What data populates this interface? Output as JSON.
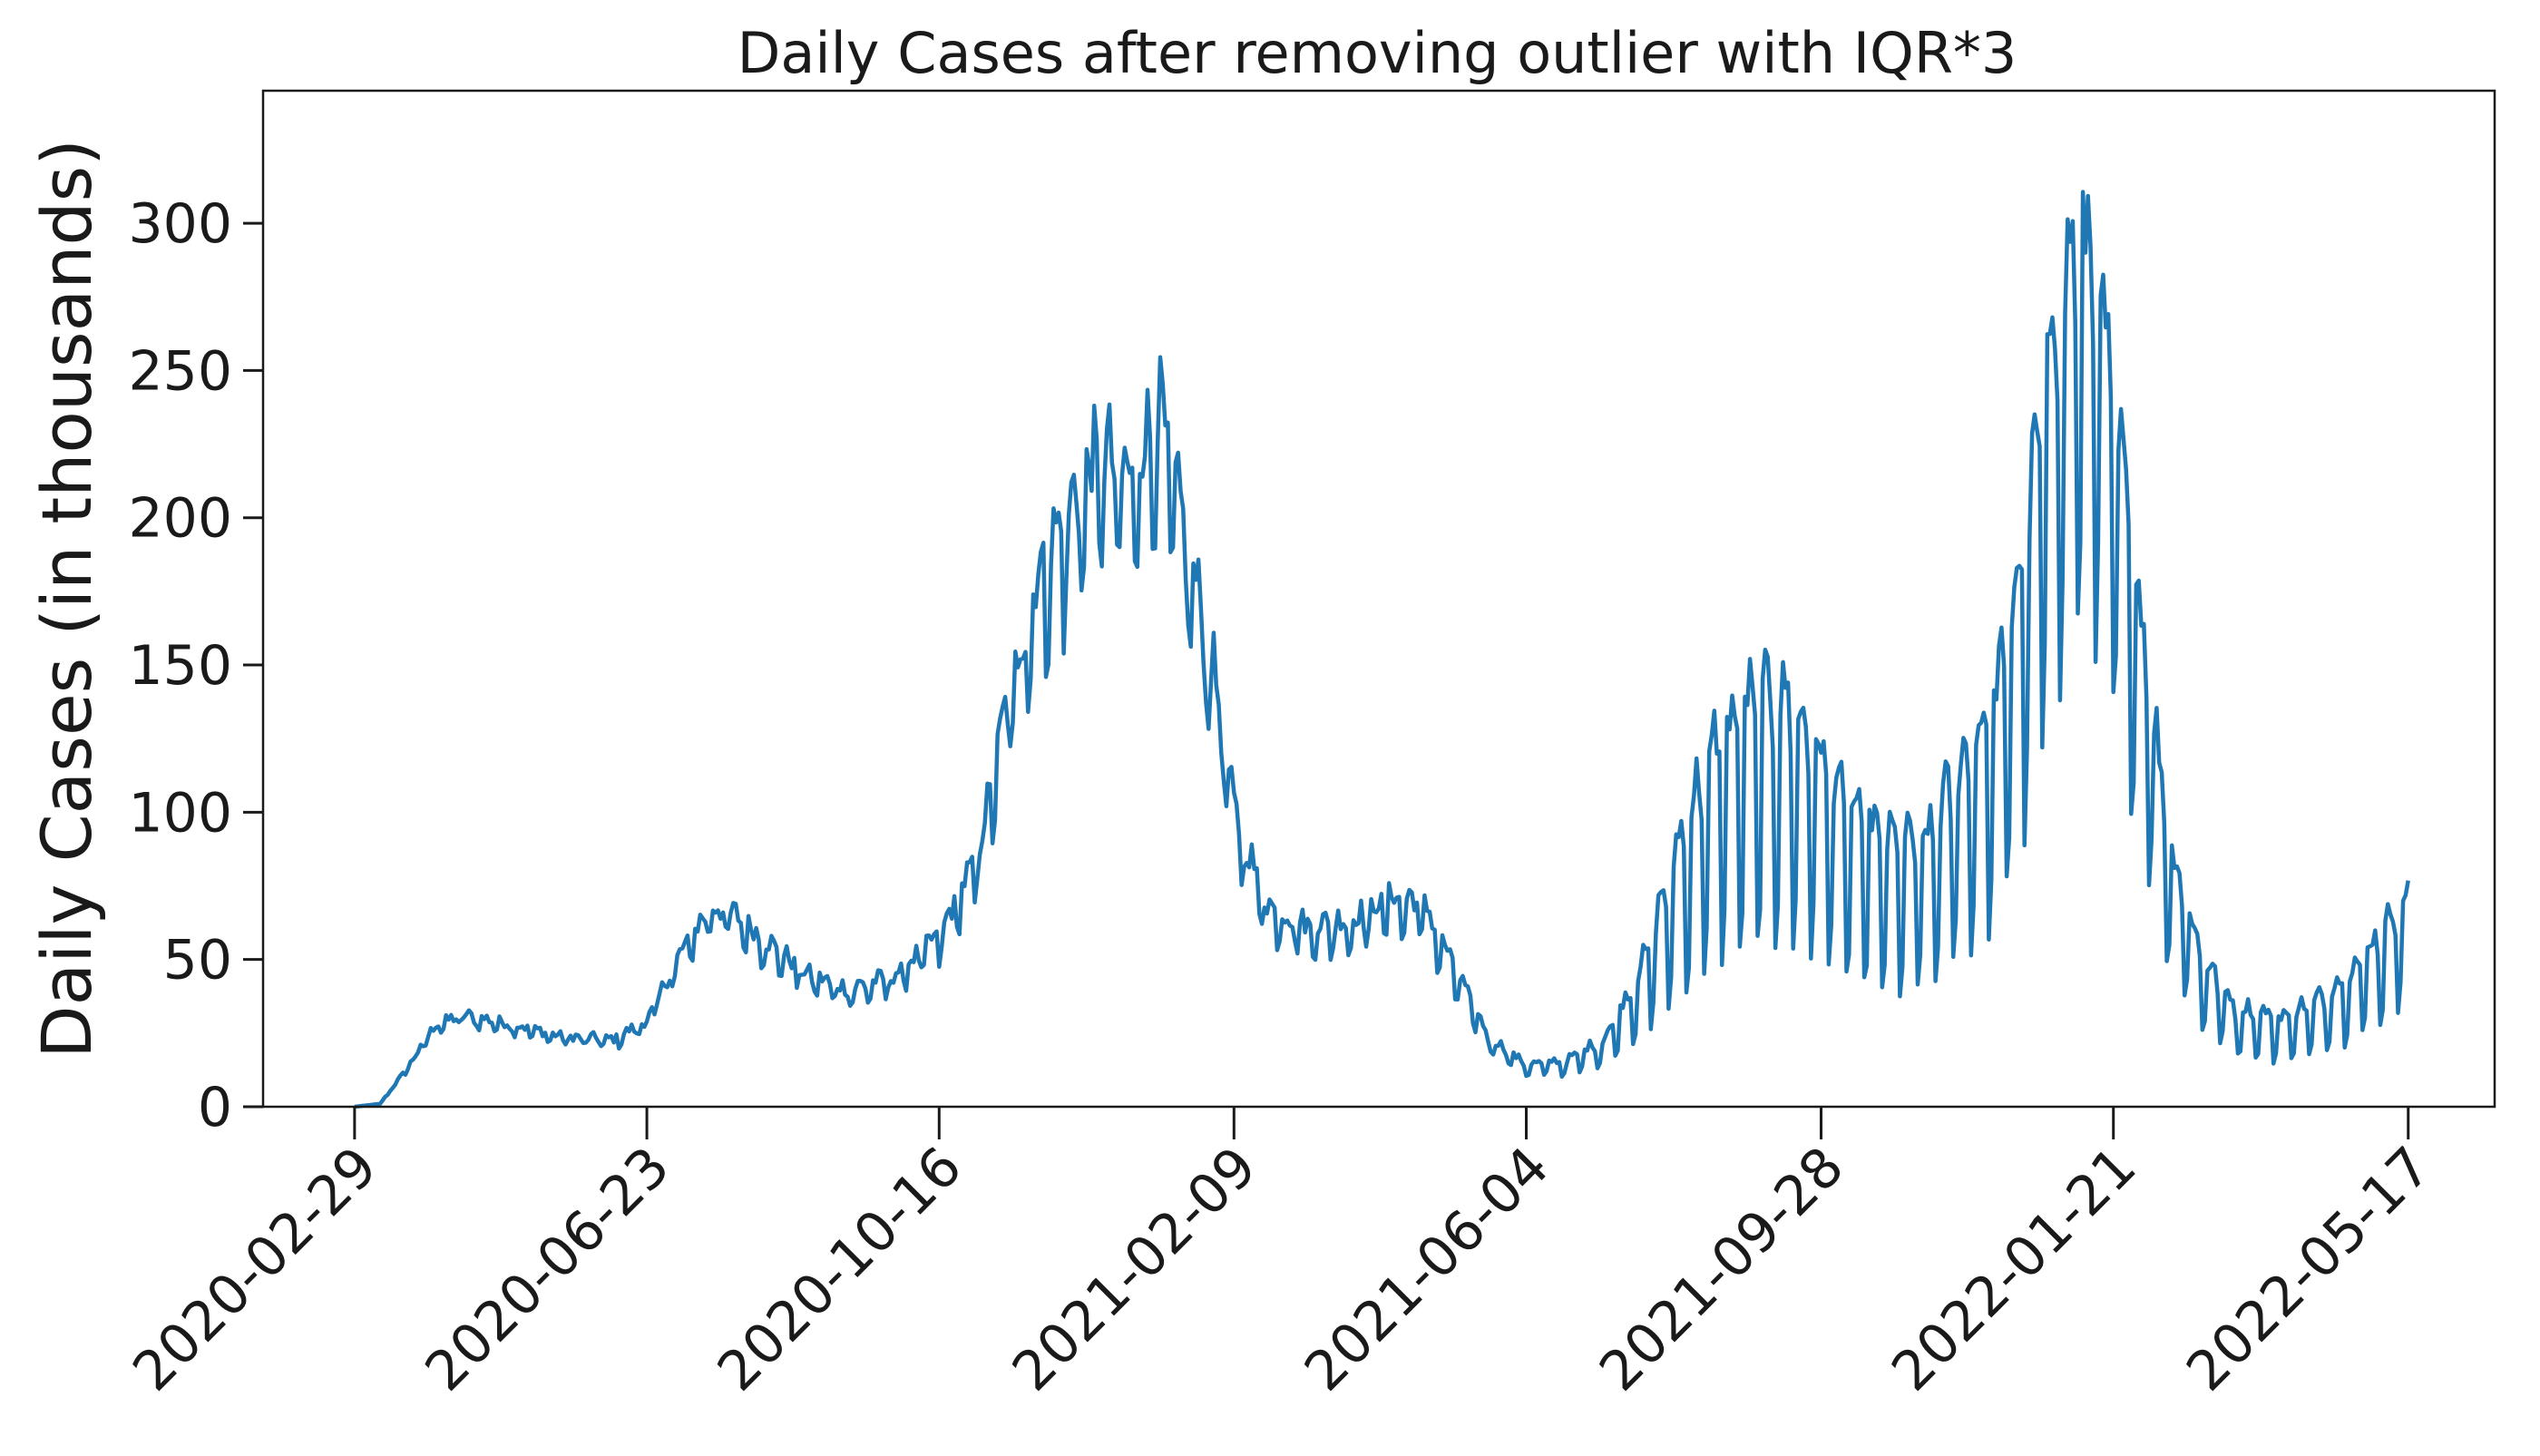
{
  "chart_data": {
    "type": "line",
    "title": "Daily Cases after removing outlier with IQR*3",
    "xlabel": "",
    "ylabel": "Daily Cases (in thousands)",
    "xlim": [
      "2020-01-24",
      "2022-06-20"
    ],
    "ylim": [
      0,
      345
    ],
    "grid": false,
    "legend": "none",
    "line_color": "#1f77b4",
    "x_ticks": [
      "2020-02-29",
      "2020-06-23",
      "2020-10-16",
      "2021-02-09",
      "2021-06-04",
      "2021-09-28",
      "2022-01-21",
      "2022-05-17"
    ],
    "y_ticks": [
      "0",
      "50",
      "100",
      "150",
      "200",
      "250",
      "300"
    ],
    "series": [
      {
        "x_start": "2020-02-29",
        "frequency": "daily",
        "y_unit": "thousands",
        "trend_anchors": [
          [
            "2020-02-29",
            0
          ],
          [
            "2020-03-10",
            1
          ],
          [
            "2020-03-20",
            12
          ],
          [
            "2020-04-01",
            27
          ],
          [
            "2020-04-12",
            30
          ],
          [
            "2020-05-01",
            27
          ],
          [
            "2020-05-20",
            23
          ],
          [
            "2020-06-10",
            22
          ],
          [
            "2020-06-23",
            28
          ],
          [
            "2020-07-05",
            48
          ],
          [
            "2020-07-18",
            65
          ],
          [
            "2020-07-28",
            62
          ],
          [
            "2020-08-10",
            53
          ],
          [
            "2020-08-25",
            43
          ],
          [
            "2020-09-10",
            38
          ],
          [
            "2020-09-28",
            42
          ],
          [
            "2020-10-16",
            55
          ],
          [
            "2020-10-31",
            80
          ],
          [
            "2020-11-12",
            130
          ],
          [
            "2020-11-24",
            170
          ],
          [
            "2020-12-06",
            190
          ],
          [
            "2020-12-18",
            210
          ],
          [
            "2020-12-30",
            200
          ],
          [
            "2021-01-10",
            225
          ],
          [
            "2021-01-20",
            185
          ],
          [
            "2021-02-01",
            140
          ],
          [
            "2021-02-09",
            95
          ],
          [
            "2021-02-22",
            65
          ],
          [
            "2021-03-10",
            58
          ],
          [
            "2021-03-28",
            60
          ],
          [
            "2021-04-12",
            67
          ],
          [
            "2021-04-24",
            65
          ],
          [
            "2021-05-06",
            45
          ],
          [
            "2021-05-20",
            22
          ],
          [
            "2021-06-04",
            13
          ],
          [
            "2021-06-20",
            14
          ],
          [
            "2021-07-05",
            20
          ],
          [
            "2021-07-20",
            40
          ],
          [
            "2021-08-05",
            75
          ],
          [
            "2021-08-20",
            100
          ],
          [
            "2021-09-05",
            110
          ],
          [
            "2021-09-15",
            108
          ],
          [
            "2021-09-28",
            95
          ],
          [
            "2021-10-10",
            80
          ],
          [
            "2021-10-25",
            72
          ],
          [
            "2021-11-08",
            72
          ],
          [
            "2021-11-20",
            90
          ],
          [
            "2021-12-05",
            110
          ],
          [
            "2021-12-18",
            160
          ],
          [
            "2021-12-28",
            220
          ],
          [
            "2022-01-08",
            250
          ],
          [
            "2022-01-14",
            240
          ],
          [
            "2022-01-21",
            200
          ],
          [
            "2022-02-01",
            140
          ],
          [
            "2022-02-12",
            75
          ],
          [
            "2022-02-25",
            42
          ],
          [
            "2022-03-10",
            28
          ],
          [
            "2022-03-28",
            25
          ],
          [
            "2022-04-12",
            30
          ],
          [
            "2022-04-25",
            38
          ],
          [
            "2022-05-08",
            50
          ],
          [
            "2022-05-17",
            60
          ]
        ],
        "weekly_amplitude_anchors": [
          [
            "2020-02-29",
            0.0
          ],
          [
            "2020-04-01",
            0.12
          ],
          [
            "2020-10-01",
            0.18
          ],
          [
            "2020-12-01",
            0.22
          ],
          [
            "2021-03-01",
            0.18
          ],
          [
            "2021-06-01",
            0.3
          ],
          [
            "2021-07-10",
            0.55
          ],
          [
            "2021-08-01",
            0.85
          ],
          [
            "2021-12-01",
            0.75
          ],
          [
            "2022-01-15",
            0.55
          ],
          [
            "2022-03-01",
            0.65
          ],
          [
            "2022-05-17",
            0.7
          ]
        ]
      }
    ]
  }
}
